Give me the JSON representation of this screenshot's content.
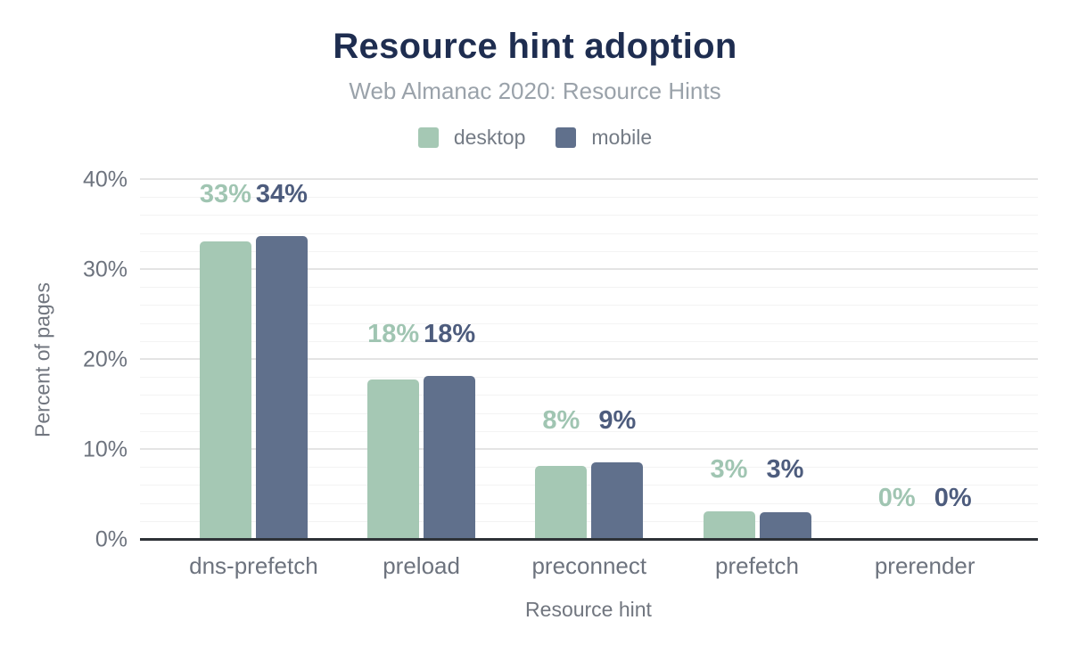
{
  "title": "Resource hint adoption",
  "subtitle": "Web Almanac 2020: Resource Hints",
  "legend": {
    "items": [
      {
        "label": "desktop",
        "color": "#a5c8b4"
      },
      {
        "label": "mobile",
        "color": "#60708c"
      }
    ]
  },
  "chart_data": {
    "type": "bar",
    "title": "Resource hint adoption",
    "subtitle": "Web Almanac 2020: Resource Hints",
    "categories": [
      "dns-prefetch",
      "preload",
      "preconnect",
      "prefetch",
      "prerender"
    ],
    "series": [
      {
        "name": "desktop",
        "color": "#a5c8b4",
        "label_color": "#a0c5b2",
        "values": [
          33,
          18,
          8,
          3,
          0
        ],
        "labels": [
          "33%",
          "18%",
          "8%",
          "3%",
          "0%"
        ],
        "bar_heights_pct": [
          33.2,
          17.8,
          8.2,
          3.2,
          0
        ]
      },
      {
        "name": "mobile",
        "color": "#60708c",
        "label_color": "#4d5c7d",
        "values": [
          34,
          18,
          9,
          3,
          0
        ],
        "labels": [
          "34%",
          "18%",
          "9%",
          "3%",
          "0%"
        ],
        "bar_heights_pct": [
          33.8,
          18.2,
          8.6,
          3.1,
          0
        ]
      }
    ],
    "xlabel": "Resource hint",
    "ylabel": "Percent of pages",
    "ylim": [
      0,
      40
    ],
    "yticks": [
      {
        "value": 0,
        "label": "0%"
      },
      {
        "value": 10,
        "label": "10%"
      },
      {
        "value": 20,
        "label": "20%"
      },
      {
        "value": 30,
        "label": "30%"
      },
      {
        "value": 40,
        "label": "40%"
      }
    ],
    "minor_grid_step": 2,
    "legend_position": "top",
    "grid": true,
    "colors": {
      "title": "#1e2d50",
      "subtitle": "#9aa2aa",
      "tick_text": "#6d737e",
      "axis_title_text": "#71767f",
      "axis_line": "#2e3237",
      "major_grid": "#e4e4e4",
      "minor_grid": "#f3f3f3",
      "background": "#ffffff"
    }
  }
}
